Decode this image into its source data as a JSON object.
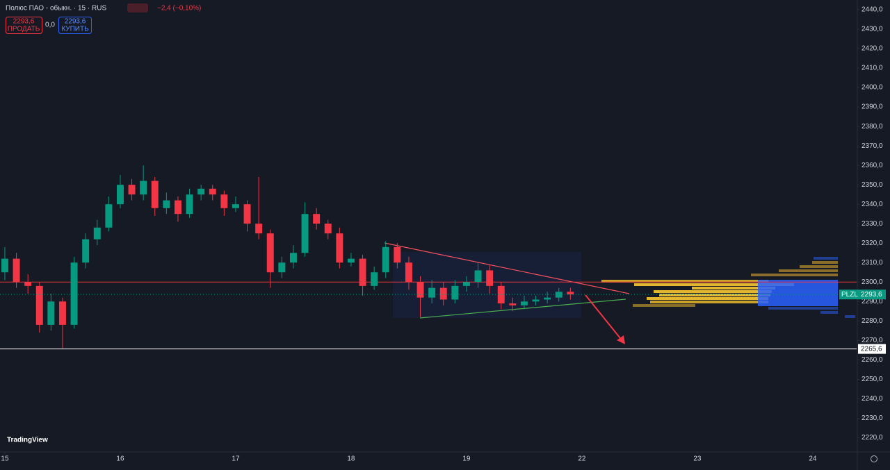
{
  "header": {
    "title": "Полюс ПАО - обыкн. · 15 · RUS",
    "change": "−2,4 (−0,10%)",
    "sell_price": "2293,6",
    "sell_label": "ПРОДАТЬ",
    "spread": "0,0",
    "buy_price": "2293,6",
    "buy_label": "КУПИТЬ"
  },
  "branding": "TradingView",
  "chart_data": {
    "type": "candlestick",
    "up_color": "#089981",
    "down_color": "#f23645",
    "x": [
      0,
      0.1,
      0.2,
      0.3,
      0.4,
      0.5,
      0.6,
      0.7,
      0.8,
      0.9,
      1,
      1.1,
      1.2,
      1.3,
      1.4,
      1.5,
      1.6,
      1.7,
      1.8,
      1.9,
      2,
      2.1,
      2.2,
      2.3,
      2.4,
      2.5,
      2.6,
      2.7,
      2.8,
      2.9,
      3,
      3.1,
      3.2,
      3.3,
      3.4,
      3.5,
      3.6,
      3.7,
      3.8,
      3.9,
      4,
      4.1,
      4.2,
      4.3,
      4.4,
      4.5,
      4.6,
      4.7,
      4.8,
      4.9
    ],
    "open": [
      2305,
      2312,
      2300,
      2298,
      2278,
      2290,
      2278,
      2310,
      2322,
      2328,
      2340,
      2350,
      2345,
      2352,
      2338,
      2342,
      2335,
      2345,
      2348,
      2345,
      2338,
      2340,
      2330,
      2325,
      2305,
      2310,
      2315,
      2335,
      2330,
      2325,
      2310,
      2312,
      2298,
      2305,
      2318,
      2310,
      2300,
      2292,
      2297,
      2291,
      2298,
      2300,
      2306,
      2298,
      2289,
      2288,
      2290,
      2291,
      2292,
      2295
    ],
    "high": [
      2318,
      2315,
      2304,
      2300,
      2294,
      2292,
      2313,
      2325,
      2332,
      2344,
      2355,
      2353,
      2360,
      2354,
      2346,
      2344,
      2348,
      2350,
      2350,
      2347,
      2344,
      2342,
      2354,
      2327,
      2313,
      2319,
      2341,
      2338,
      2332,
      2328,
      2315,
      2314,
      2308,
      2321,
      2320,
      2313,
      2303,
      2301,
      2300,
      2301,
      2303,
      2310,
      2309,
      2300,
      2292,
      2293,
      2293,
      2295,
      2297,
      2297
    ],
    "low": [
      2301,
      2297,
      2294,
      2274,
      2275,
      2266,
      2276,
      2307,
      2319,
      2326,
      2338,
      2342,
      2342,
      2334,
      2335,
      2331,
      2333,
      2342,
      2342,
      2334,
      2336,
      2326,
      2322,
      2297,
      2302,
      2307,
      2313,
      2327,
      2322,
      2307,
      2308,
      2293,
      2296,
      2302,
      2307,
      2296,
      2282,
      2289,
      2288,
      2289,
      2295,
      2297,
      2294,
      2286,
      2285,
      2286,
      2288,
      2289,
      2290,
      2291
    ],
    "close": [
      2312,
      2300,
      2298,
      2278,
      2290,
      2278,
      2310,
      2322,
      2328,
      2340,
      2350,
      2345,
      2352,
      2338,
      2342,
      2335,
      2345,
      2348,
      2345,
      2338,
      2340,
      2330,
      2325,
      2305,
      2310,
      2315,
      2335,
      2330,
      2325,
      2310,
      2312,
      2298,
      2305,
      2318,
      2310,
      2300,
      2292,
      2297,
      2291,
      2298,
      2300,
      2306,
      2298,
      2289,
      2288,
      2290,
      2291,
      2292,
      2295,
      2293.6
    ],
    "xlim": [
      -0.042,
      7.38
    ],
    "xticks": [
      {
        "value": 0,
        "label": "15"
      },
      {
        "value": 1,
        "label": "16"
      },
      {
        "value": 2,
        "label": "17"
      },
      {
        "value": 3,
        "label": "18"
      },
      {
        "value": 4,
        "label": "19"
      },
      {
        "value": 5,
        "label": "22"
      },
      {
        "value": 6,
        "label": "23"
      },
      {
        "value": 7,
        "label": "24"
      }
    ],
    "ylim": [
      2213,
      2445
    ],
    "yticks": [
      {
        "value": 2220,
        "label": "2220,0"
      },
      {
        "value": 2230,
        "label": "2230,0"
      },
      {
        "value": 2240,
        "label": "2240,0"
      },
      {
        "value": 2250,
        "label": "2250,0"
      },
      {
        "value": 2260,
        "label": "2260,0"
      },
      {
        "value": 2270,
        "label": "2270,0"
      },
      {
        "value": 2280,
        "label": "2280,0"
      },
      {
        "value": 2290,
        "label": "2290,0"
      },
      {
        "value": 2300,
        "label": "2300,0"
      },
      {
        "value": 2310,
        "label": "2310,0"
      },
      {
        "value": 2320,
        "label": "2320,0"
      },
      {
        "value": 2330,
        "label": "2330,0"
      },
      {
        "value": 2340,
        "label": "2340,0"
      },
      {
        "value": 2350,
        "label": "2350,0"
      },
      {
        "value": 2360,
        "label": "2360,0"
      },
      {
        "value": 2370,
        "label": "2370,0"
      },
      {
        "value": 2380,
        "label": "2380,0"
      },
      {
        "value": 2390,
        "label": "2390,0"
      },
      {
        "value": 2400,
        "label": "2400,0"
      },
      {
        "value": 2410,
        "label": "2410,0"
      },
      {
        "value": 2420,
        "label": "2420,0"
      },
      {
        "value": 2430,
        "label": "2430,0"
      },
      {
        "value": 2440,
        "label": "2440,0"
      }
    ],
    "hlines": [
      {
        "value": 2300,
        "color": "#f23645"
      },
      {
        "value": 2265.6,
        "label": "2265,6",
        "color": "#ffffff"
      }
    ],
    "last_price": {
      "symbol": "PLZL",
      "value": 2293.6,
      "label": "2293,6",
      "color": "#089981"
    }
  }
}
